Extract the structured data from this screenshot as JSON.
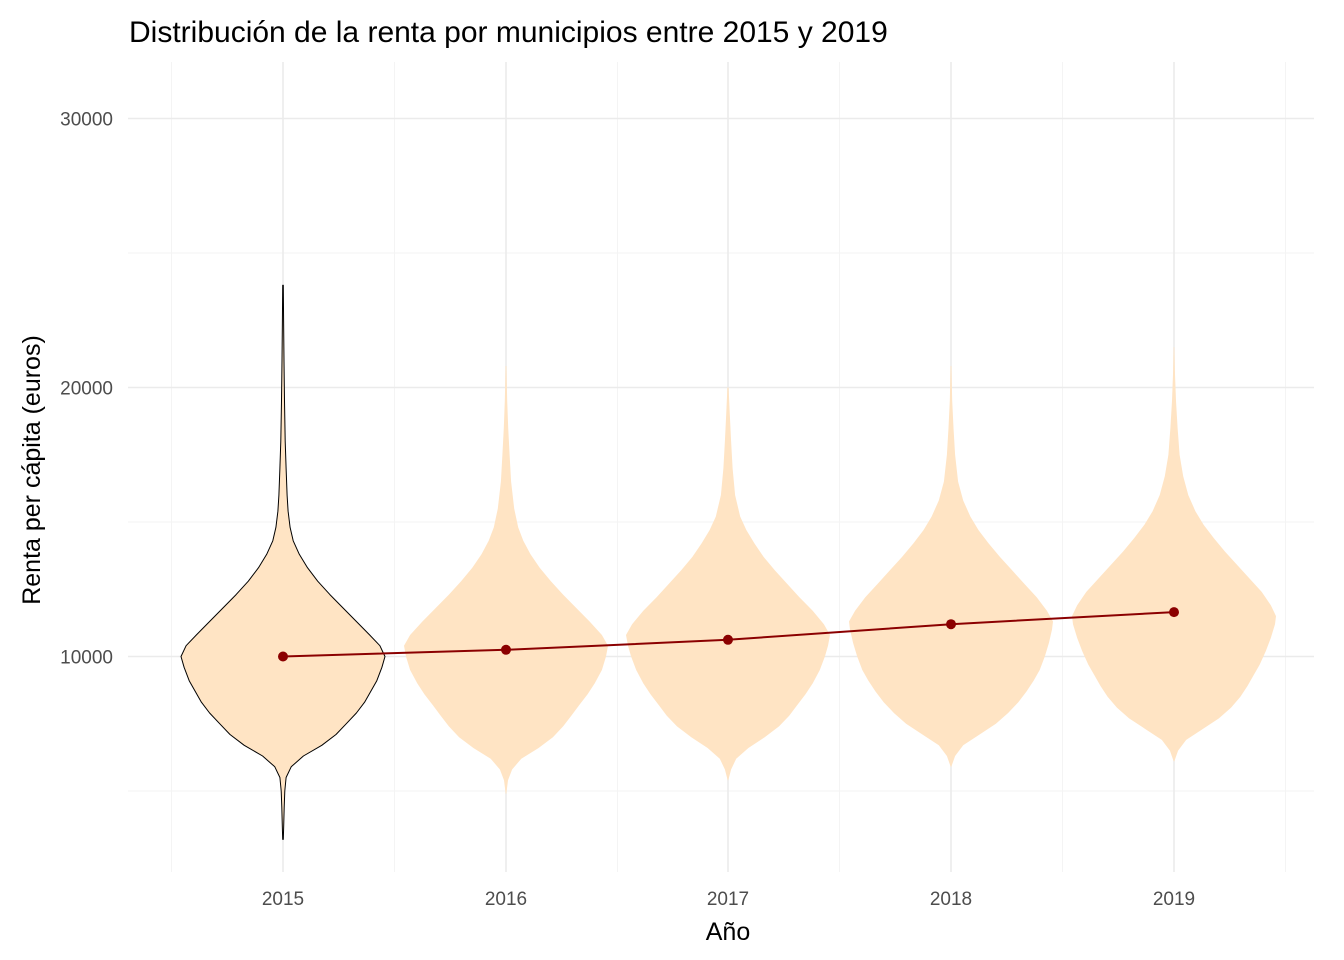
{
  "chart_data": {
    "type": "violin",
    "title": "Distribución de la renta por municipios entre 2015 y 2019",
    "xlabel": "Año",
    "ylabel": "Renta per cápita (euros)",
    "categories": [
      "2015",
      "2016",
      "2017",
      "2018",
      "2019"
    ],
    "ylim": [
      3000,
      32000
    ],
    "yticks": [
      10000,
      20000,
      30000
    ],
    "ytick_labels": [
      "10000",
      "20000",
      "30000"
    ],
    "grid": true,
    "legend": "none",
    "colors": {
      "violin_fill": "#FFE4C4",
      "violin_outline_2015": "#000000",
      "mean_line": "#8B0000",
      "mean_point": "#8B0000"
    },
    "mean_series": {
      "x": [
        "2015",
        "2016",
        "2017",
        "2018",
        "2019"
      ],
      "values": [
        10000,
        10250,
        10620,
        11200,
        11650
      ]
    },
    "violins": [
      {
        "category": "2015",
        "outline": true,
        "profile": [
          [
            3200,
            0.003
          ],
          [
            3700,
            0.007
          ],
          [
            4400,
            0.012
          ],
          [
            5000,
            0.018
          ],
          [
            5500,
            0.03
          ],
          [
            5900,
            0.08
          ],
          [
            6300,
            0.2
          ],
          [
            6700,
            0.38
          ],
          [
            7100,
            0.52
          ],
          [
            7500,
            0.62
          ],
          [
            7900,
            0.72
          ],
          [
            8300,
            0.8
          ],
          [
            8700,
            0.86
          ],
          [
            9100,
            0.92
          ],
          [
            9600,
            0.97
          ],
          [
            10000,
            1.0
          ],
          [
            10400,
            0.95
          ],
          [
            10800,
            0.85
          ],
          [
            11300,
            0.72
          ],
          [
            11800,
            0.59
          ],
          [
            12300,
            0.46
          ],
          [
            12800,
            0.34
          ],
          [
            13300,
            0.24
          ],
          [
            13800,
            0.16
          ],
          [
            14300,
            0.1
          ],
          [
            14800,
            0.07
          ],
          [
            15400,
            0.05
          ],
          [
            16000,
            0.04
          ],
          [
            17000,
            0.03
          ],
          [
            18000,
            0.022
          ],
          [
            19500,
            0.015
          ],
          [
            21000,
            0.01
          ],
          [
            22500,
            0.006
          ],
          [
            23800,
            0.003
          ]
        ]
      },
      {
        "category": "2016",
        "outline": false,
        "profile": [
          [
            4900,
            0.003
          ],
          [
            5400,
            0.02
          ],
          [
            5800,
            0.06
          ],
          [
            6200,
            0.15
          ],
          [
            6600,
            0.32
          ],
          [
            7000,
            0.46
          ],
          [
            7400,
            0.56
          ],
          [
            7800,
            0.64
          ],
          [
            8200,
            0.72
          ],
          [
            8600,
            0.8
          ],
          [
            9000,
            0.87
          ],
          [
            9500,
            0.94
          ],
          [
            10000,
            0.98
          ],
          [
            10400,
            1.0
          ],
          [
            10800,
            0.94
          ],
          [
            11300,
            0.82
          ],
          [
            11800,
            0.69
          ],
          [
            12300,
            0.56
          ],
          [
            12800,
            0.44
          ],
          [
            13300,
            0.33
          ],
          [
            13800,
            0.24
          ],
          [
            14300,
            0.17
          ],
          [
            14800,
            0.12
          ],
          [
            15500,
            0.08
          ],
          [
            16500,
            0.05
          ],
          [
            17500,
            0.035
          ],
          [
            18500,
            0.022
          ],
          [
            19500,
            0.012
          ],
          [
            20800,
            0.004
          ]
        ]
      },
      {
        "category": "2017",
        "outline": false,
        "profile": [
          [
            5400,
            0.003
          ],
          [
            5800,
            0.03
          ],
          [
            6200,
            0.08
          ],
          [
            6600,
            0.2
          ],
          [
            7000,
            0.36
          ],
          [
            7400,
            0.5
          ],
          [
            7800,
            0.6
          ],
          [
            8200,
            0.68
          ],
          [
            8600,
            0.76
          ],
          [
            9000,
            0.83
          ],
          [
            9500,
            0.9
          ],
          [
            10000,
            0.95
          ],
          [
            10400,
            0.98
          ],
          [
            10800,
            1.0
          ],
          [
            11200,
            0.94
          ],
          [
            11700,
            0.83
          ],
          [
            12200,
            0.7
          ],
          [
            12700,
            0.58
          ],
          [
            13200,
            0.46
          ],
          [
            13700,
            0.35
          ],
          [
            14200,
            0.26
          ],
          [
            14700,
            0.18
          ],
          [
            15200,
            0.12
          ],
          [
            16000,
            0.07
          ],
          [
            17000,
            0.045
          ],
          [
            18000,
            0.03
          ],
          [
            19000,
            0.018
          ],
          [
            20000,
            0.006
          ]
        ]
      },
      {
        "category": "2018",
        "outline": false,
        "profile": [
          [
            5900,
            0.003
          ],
          [
            6300,
            0.04
          ],
          [
            6700,
            0.12
          ],
          [
            7100,
            0.28
          ],
          [
            7500,
            0.44
          ],
          [
            7900,
            0.56
          ],
          [
            8300,
            0.66
          ],
          [
            8700,
            0.74
          ],
          [
            9100,
            0.81
          ],
          [
            9500,
            0.87
          ],
          [
            10000,
            0.92
          ],
          [
            10500,
            0.96
          ],
          [
            11000,
            0.99
          ],
          [
            11300,
            1.0
          ],
          [
            11700,
            0.94
          ],
          [
            12200,
            0.84
          ],
          [
            12700,
            0.72
          ],
          [
            13200,
            0.6
          ],
          [
            13700,
            0.48
          ],
          [
            14200,
            0.37
          ],
          [
            14700,
            0.27
          ],
          [
            15200,
            0.19
          ],
          [
            15800,
            0.12
          ],
          [
            16500,
            0.07
          ],
          [
            17500,
            0.04
          ],
          [
            18500,
            0.025
          ],
          [
            19500,
            0.012
          ],
          [
            20800,
            0.004
          ]
        ]
      },
      {
        "category": "2019",
        "outline": false,
        "profile": [
          [
            6100,
            0.003
          ],
          [
            6500,
            0.04
          ],
          [
            6900,
            0.12
          ],
          [
            7300,
            0.28
          ],
          [
            7700,
            0.44
          ],
          [
            8100,
            0.56
          ],
          [
            8500,
            0.65
          ],
          [
            8900,
            0.72
          ],
          [
            9300,
            0.78
          ],
          [
            9700,
            0.84
          ],
          [
            10200,
            0.9
          ],
          [
            10700,
            0.95
          ],
          [
            11200,
            0.99
          ],
          [
            11500,
            1.0
          ],
          [
            11900,
            0.95
          ],
          [
            12400,
            0.86
          ],
          [
            12900,
            0.74
          ],
          [
            13400,
            0.62
          ],
          [
            13900,
            0.5
          ],
          [
            14400,
            0.39
          ],
          [
            14900,
            0.29
          ],
          [
            15400,
            0.21
          ],
          [
            16000,
            0.14
          ],
          [
            16700,
            0.09
          ],
          [
            17500,
            0.055
          ],
          [
            18500,
            0.035
          ],
          [
            19500,
            0.02
          ],
          [
            20500,
            0.01
          ],
          [
            21500,
            0.003
          ]
        ]
      }
    ]
  }
}
